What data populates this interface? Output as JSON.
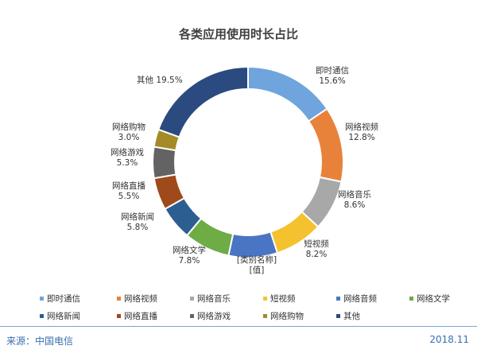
{
  "chart_data": {
    "type": "pie",
    "title": "各类应用使用时长占比",
    "slices": [
      {
        "label": "即时通信",
        "value": 15.6,
        "value_label": "15.6%",
        "color": "#6fa4dc"
      },
      {
        "label": "网络视频",
        "value": 12.8,
        "value_label": "12.8%",
        "color": "#e8823a"
      },
      {
        "label": "网络音乐",
        "value": 8.6,
        "value_label": "8.6%",
        "color": "#a8a8a8"
      },
      {
        "label": "短视频",
        "value": 8.2,
        "value_label": "8.2%",
        "color": "#f4c22e"
      },
      {
        "label": "[类别名称]",
        "value": 8.3,
        "value_label": "[值]",
        "color": "#4a75c4"
      },
      {
        "label": "网络文学",
        "value": 7.8,
        "value_label": "7.8%",
        "color": "#6eac46"
      },
      {
        "label": "网络新闻",
        "value": 5.8,
        "value_label": "5.8%",
        "color": "#2c5e91"
      },
      {
        "label": "网络直播",
        "value": 5.5,
        "value_label": "5.5%",
        "color": "#9e4a1a"
      },
      {
        "label": "网络游戏",
        "value": 5.3,
        "value_label": "5.3%",
        "color": "#636363"
      },
      {
        "label": "网络购物",
        "value": 3.0,
        "value_label": "3.0%",
        "color": "#a58a28"
      },
      {
        "label": "其他",
        "value": 19.5,
        "value_label": "19.5%",
        "color": "#2a4a80"
      }
    ],
    "legend": {
      "placement": "bottom",
      "rows": [
        [
          {
            "label": "即时通信",
            "color": "#6fa4dc"
          },
          {
            "label": "网络视频",
            "color": "#e8823a"
          },
          {
            "label": "网络音乐",
            "color": "#a8a8a8"
          },
          {
            "label": "短视频",
            "color": "#f4c22e"
          },
          {
            "label": "网络音频",
            "color": "#4a75c4"
          },
          {
            "label": "网络文学",
            "color": "#6eac46"
          }
        ],
        [
          {
            "label": "网络新闻",
            "color": "#2c5e91"
          },
          {
            "label": "网络直播",
            "color": "#9e4a1a"
          },
          {
            "label": "网络游戏",
            "color": "#636363"
          },
          {
            "label": "网络购物",
            "color": "#a58a28"
          },
          {
            "label": "其他",
            "color": "#2a4a80"
          }
        ]
      ]
    }
  },
  "footer": {
    "source": "来源：中国电信",
    "date": "2018.11"
  }
}
